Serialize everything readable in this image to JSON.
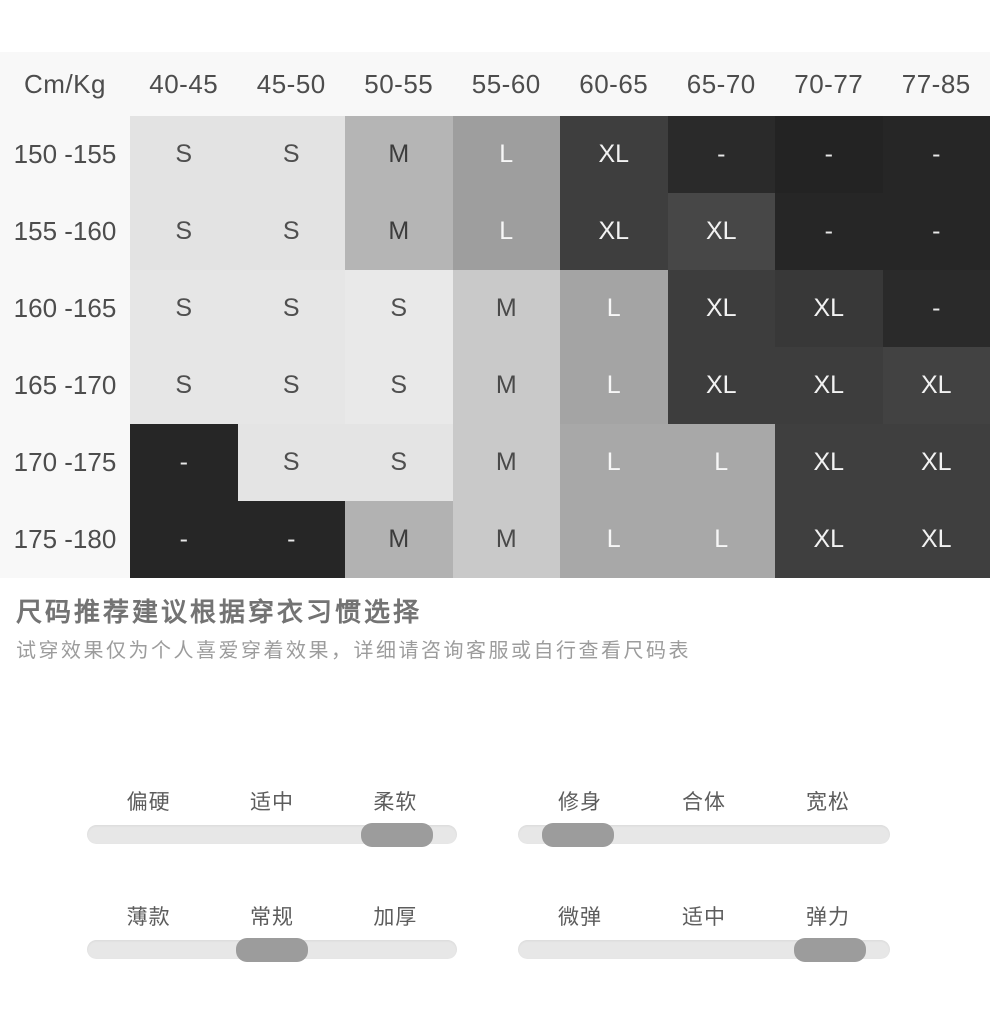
{
  "size_table": {
    "corner_label": "Cm/Kg",
    "weight_headers": [
      "40-45",
      "45-50",
      "50-55",
      "55-60",
      "60-65",
      "65-70",
      "70-77",
      "77-85"
    ],
    "rows": [
      {
        "height_label": "150 -155",
        "cells": [
          {
            "size": "S",
            "bg": "#e3e3e3",
            "fg": "#4f4f4f"
          },
          {
            "size": "S",
            "bg": "#e3e3e3",
            "fg": "#4f4f4f"
          },
          {
            "size": "M",
            "bg": "#b5b5b5",
            "fg": "#3c3c3c"
          },
          {
            "size": "L",
            "bg": "#9e9e9e",
            "fg": "#f7f7f7"
          },
          {
            "size": "XL",
            "bg": "#3e3e3e",
            "fg": "#f2f2f2"
          },
          {
            "size": "-",
            "bg": "#2a2a2a",
            "fg": "#e8e8e8"
          },
          {
            "size": "-",
            "bg": "#232323",
            "fg": "#e8e8e8"
          },
          {
            "size": "-",
            "bg": "#262626",
            "fg": "#e8e8e8"
          }
        ]
      },
      {
        "height_label": "155 -160",
        "cells": [
          {
            "size": "S",
            "bg": "#e3e3e3",
            "fg": "#4f4f4f"
          },
          {
            "size": "S",
            "bg": "#e3e3e3",
            "fg": "#4f4f4f"
          },
          {
            "size": "M",
            "bg": "#b5b5b5",
            "fg": "#3c3c3c"
          },
          {
            "size": "L",
            "bg": "#9e9e9e",
            "fg": "#f7f7f7"
          },
          {
            "size": "XL",
            "bg": "#3e3e3e",
            "fg": "#f2f2f2"
          },
          {
            "size": "XL",
            "bg": "#474747",
            "fg": "#f2f2f2"
          },
          {
            "size": "-",
            "bg": "#262626",
            "fg": "#e8e8e8"
          },
          {
            "size": "-",
            "bg": "#262626",
            "fg": "#e8e8e8"
          }
        ]
      },
      {
        "height_label": "160 -165",
        "cells": [
          {
            "size": "S",
            "bg": "#e6e6e6",
            "fg": "#4f4f4f"
          },
          {
            "size": "S",
            "bg": "#e6e6e6",
            "fg": "#4f4f4f"
          },
          {
            "size": "S",
            "bg": "#e9e9e9",
            "fg": "#4f4f4f"
          },
          {
            "size": "M",
            "bg": "#c9c9c9",
            "fg": "#4a4a4a"
          },
          {
            "size": "L",
            "bg": "#a4a4a4",
            "fg": "#f7f7f7"
          },
          {
            "size": "XL",
            "bg": "#3d3d3d",
            "fg": "#f2f2f2"
          },
          {
            "size": "XL",
            "bg": "#383838",
            "fg": "#f2f2f2"
          },
          {
            "size": "-",
            "bg": "#2a2a2a",
            "fg": "#e8e8e8"
          }
        ]
      },
      {
        "height_label": "165 -170",
        "cells": [
          {
            "size": "S",
            "bg": "#e6e6e6",
            "fg": "#4f4f4f"
          },
          {
            "size": "S",
            "bg": "#e6e6e6",
            "fg": "#4f4f4f"
          },
          {
            "size": "S",
            "bg": "#e9e9e9",
            "fg": "#4f4f4f"
          },
          {
            "size": "M",
            "bg": "#c9c9c9",
            "fg": "#4a4a4a"
          },
          {
            "size": "L",
            "bg": "#a4a4a4",
            "fg": "#f7f7f7"
          },
          {
            "size": "XL",
            "bg": "#3d3d3d",
            "fg": "#f2f2f2"
          },
          {
            "size": "XL",
            "bg": "#3d3d3d",
            "fg": "#f2f2f2"
          },
          {
            "size": "XL",
            "bg": "#424242",
            "fg": "#f2f2f2"
          }
        ]
      },
      {
        "height_label": "170 -175",
        "cells": [
          {
            "size": "-",
            "bg": "#262626",
            "fg": "#e8e8e8"
          },
          {
            "size": "S",
            "bg": "#e4e4e4",
            "fg": "#4f4f4f"
          },
          {
            "size": "S",
            "bg": "#e4e4e4",
            "fg": "#4f4f4f"
          },
          {
            "size": "M",
            "bg": "#c9c9c9",
            "fg": "#4a4a4a"
          },
          {
            "size": "L",
            "bg": "#a8a8a8",
            "fg": "#f7f7f7"
          },
          {
            "size": "L",
            "bg": "#a8a8a8",
            "fg": "#f7f7f7"
          },
          {
            "size": "XL",
            "bg": "#3f3f3f",
            "fg": "#f2f2f2"
          },
          {
            "size": "XL",
            "bg": "#3f3f3f",
            "fg": "#f2f2f2"
          }
        ]
      },
      {
        "height_label": "175 -180",
        "cells": [
          {
            "size": "-",
            "bg": "#262626",
            "fg": "#e8e8e8"
          },
          {
            "size": "-",
            "bg": "#262626",
            "fg": "#e8e8e8"
          },
          {
            "size": "M",
            "bg": "#b2b2b2",
            "fg": "#3c3c3c"
          },
          {
            "size": "M",
            "bg": "#c9c9c9",
            "fg": "#4a4a4a"
          },
          {
            "size": "L",
            "bg": "#a8a8a8",
            "fg": "#f7f7f7"
          },
          {
            "size": "L",
            "bg": "#a8a8a8",
            "fg": "#f7f7f7"
          },
          {
            "size": "XL",
            "bg": "#3f3f3f",
            "fg": "#f2f2f2"
          },
          {
            "size": "XL",
            "bg": "#3f3f3f",
            "fg": "#f2f2f2"
          }
        ]
      }
    ]
  },
  "note": {
    "title": "尺码推荐建议根据穿衣习惯选择",
    "subtitle": "试穿效果仅为个人喜爱穿着效果，详细请咨询客服或自行查看尺码表"
  },
  "sliders": [
    {
      "name": "hardness",
      "labels": [
        "偏硬",
        "适中",
        "柔软"
      ],
      "selected": "柔软",
      "value": 0.92
    },
    {
      "name": "fit",
      "labels": [
        "修身",
        "合体",
        "宽松"
      ],
      "selected": "修身",
      "value": 0.08
    },
    {
      "name": "thickness",
      "labels": [
        "薄款",
        "常规",
        "加厚"
      ],
      "selected": "常规",
      "value": 0.5
    },
    {
      "name": "elasticity",
      "labels": [
        "微弹",
        "适中",
        "弹力"
      ],
      "selected": "弹力",
      "value": 0.92
    }
  ],
  "colors": {
    "page_bg": "#ffffff",
    "table_bg": "#f8f8f8",
    "track": "#e7e7e7",
    "thumb": "#9c9c9c"
  }
}
